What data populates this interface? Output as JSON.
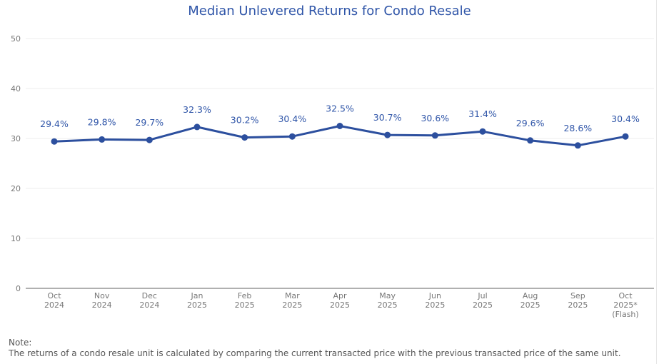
{
  "chart_data": {
    "type": "line",
    "title": "Median Unlevered Returns for Condo Resale",
    "xlabel": "",
    "ylabel": "",
    "ylim": [
      0,
      50
    ],
    "yticks": [
      "0",
      "10",
      "20",
      "30",
      "40",
      "50"
    ],
    "ytick_values": [
      0,
      10,
      20,
      30,
      40,
      50
    ],
    "grid": true,
    "categories": [
      [
        "Oct",
        "2024"
      ],
      [
        "Nov",
        "2024"
      ],
      [
        "Dec",
        "2024"
      ],
      [
        "Jan",
        "2025"
      ],
      [
        "Feb",
        "2025"
      ],
      [
        "Mar",
        "2025"
      ],
      [
        "Apr",
        "2025"
      ],
      [
        "May",
        "2025"
      ],
      [
        "Jun",
        "2025"
      ],
      [
        "Jul",
        "2025"
      ],
      [
        "Aug",
        "2025"
      ],
      [
        "Sep",
        "2025"
      ],
      [
        "Oct",
        "2025*",
        "(Flash)"
      ]
    ],
    "series": [
      {
        "name": "Median Unlevered Returns",
        "color": "#2c4f9e",
        "values": [
          29.4,
          29.8,
          29.7,
          32.3,
          30.2,
          30.4,
          32.5,
          30.7,
          30.6,
          31.4,
          29.6,
          28.6,
          30.4
        ],
        "labels": [
          "29.4%",
          "29.8%",
          "29.7%",
          "32.3%",
          "30.2%",
          "30.4%",
          "32.5%",
          "30.7%",
          "30.6%",
          "31.4%",
          "29.6%",
          "28.6%",
          "30.4%"
        ]
      }
    ]
  },
  "note": {
    "heading": "Note:",
    "text": "The returns of a condo resale unit is calculated by comparing the current transacted price with the previous transacted price of the same unit."
  },
  "colors": {
    "title": "#2f55a8",
    "line": "#2c4f9e",
    "grid": "#ececec",
    "axis": "#777777"
  }
}
